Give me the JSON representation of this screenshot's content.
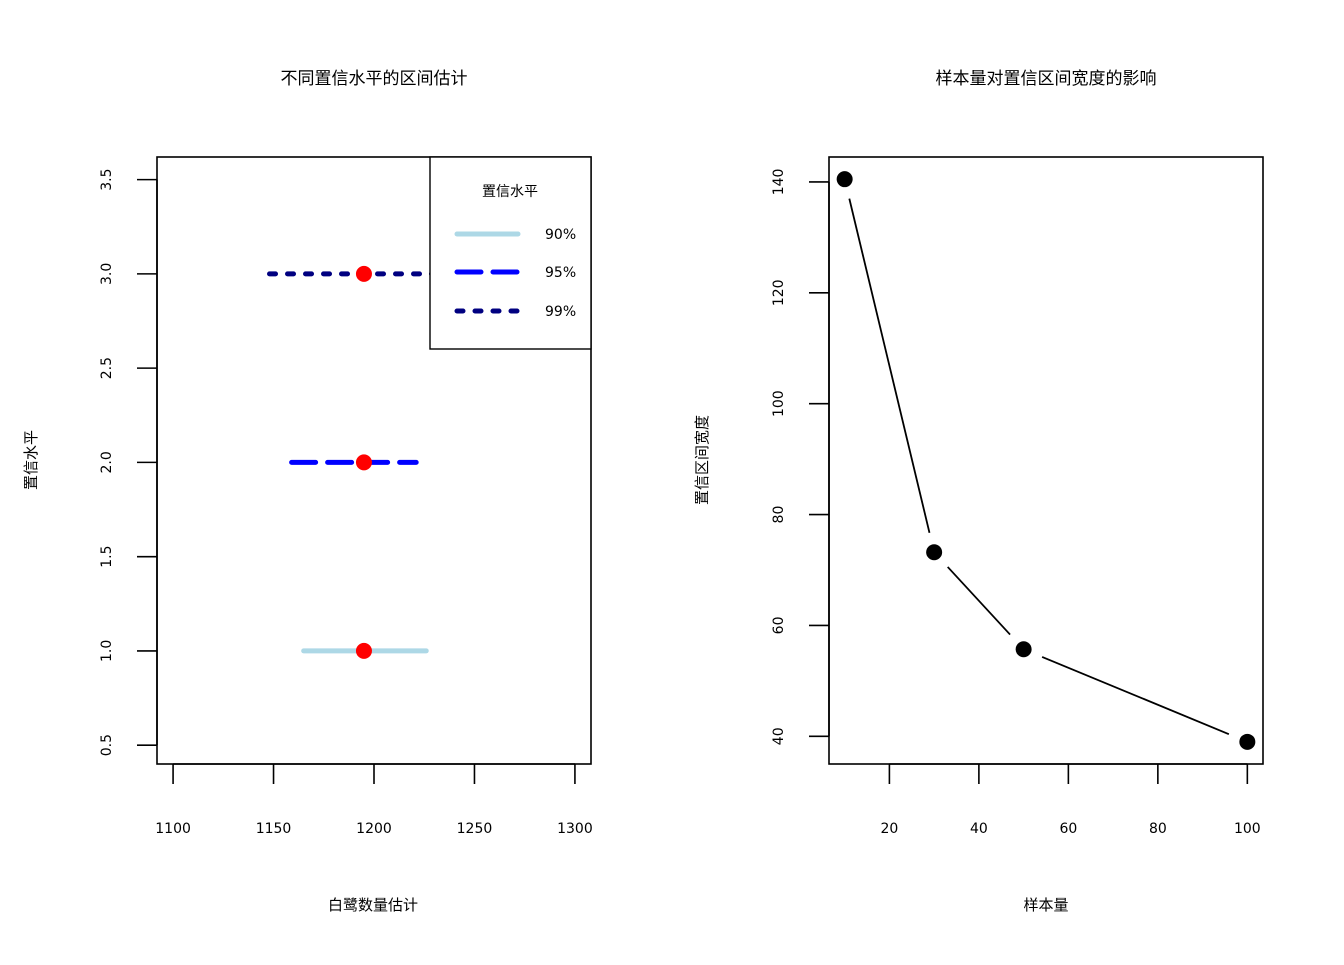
{
  "chart_data": [
    {
      "type": "interval",
      "title": "不同置信水平的区间估计",
      "xlabel": "白鹭数量估计",
      "ylabel": "置信水平",
      "xlim": [
        1092,
        1308
      ],
      "ylim": [
        0.4,
        3.62
      ],
      "xticks": [
        1100,
        1150,
        1200,
        1250,
        1300
      ],
      "yticks": [
        0.5,
        1.0,
        1.5,
        2.0,
        2.5,
        3.0,
        3.5
      ],
      "xtick_labels": [
        "1100",
        "1150",
        "1200",
        "1250",
        "1300"
      ],
      "ytick_labels": [
        "0.5",
        "1.0",
        "1.5",
        "2.0",
        "2.5",
        "3.0",
        "3.5"
      ],
      "legend": {
        "title": "置信水平",
        "position": "top-right",
        "entries": [
          "90%",
          "95%",
          "99%"
        ]
      },
      "intervals": [
        {
          "label": "90%",
          "y": 1,
          "lower": 1165,
          "upper": 1226,
          "point": 1195,
          "color": "#add8e6",
          "line_style": "solid"
        },
        {
          "label": "95%",
          "y": 2,
          "lower": 1159,
          "upper": 1221,
          "point": 1195,
          "color": "#0000ff",
          "line_style": "dashed"
        },
        {
          "label": "99%",
          "y": 3,
          "lower": 1148,
          "upper": 1243,
          "point": 1195,
          "color": "#000080",
          "line_style": "dotted"
        }
      ],
      "point_color": "#ff0000"
    },
    {
      "type": "line",
      "title": "样本量对置信区间宽度的影响",
      "xlabel": "样本量",
      "ylabel": "置信区间宽度",
      "xlim": [
        6.5,
        103.5
      ],
      "ylim": [
        35,
        144.5
      ],
      "xticks": [
        20,
        40,
        60,
        80,
        100
      ],
      "yticks": [
        40,
        60,
        80,
        100,
        120,
        140
      ],
      "xtick_labels": [
        "20",
        "40",
        "60",
        "80",
        "100"
      ],
      "ytick_labels": [
        "40",
        "60",
        "80",
        "100",
        "120",
        "140"
      ],
      "x": [
        10,
        30,
        50,
        100
      ],
      "y": [
        140.5,
        73.2,
        55.7,
        39.0
      ],
      "color": "#000000"
    }
  ]
}
